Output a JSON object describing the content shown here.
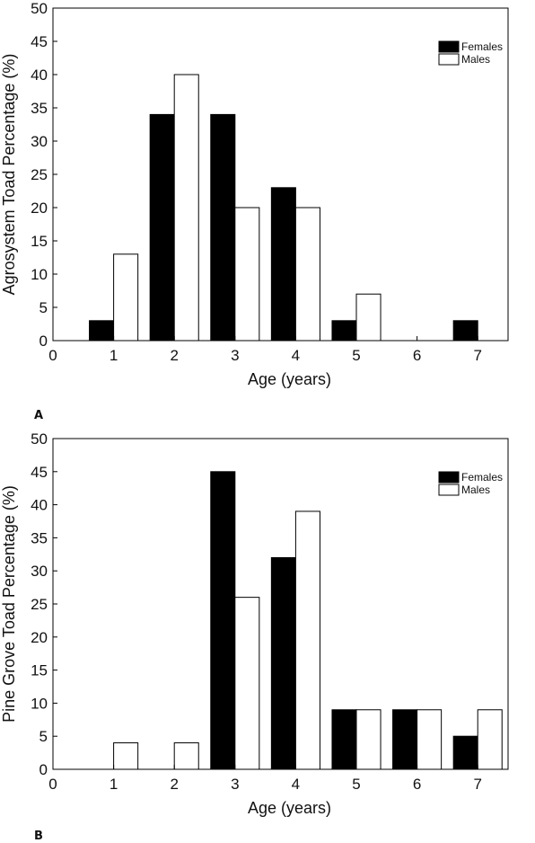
{
  "chart_data": [
    {
      "type": "bar",
      "panel_label": "A",
      "xlabel": "Age (years)",
      "ylabel": "Agrosystem Toad Percentage (%)",
      "xlim": [
        0,
        7.5
      ],
      "ylim": [
        0,
        50
      ],
      "x_ticks": [
        "0",
        "1",
        "2",
        "3",
        "4",
        "5",
        "6",
        "7"
      ],
      "y_ticks": [
        "0",
        "5",
        "10",
        "15",
        "20",
        "25",
        "30",
        "35",
        "40",
        "45",
        "50"
      ],
      "categories": [
        1,
        2,
        3,
        4,
        5,
        6,
        7
      ],
      "series": [
        {
          "name": "Females",
          "color": "#000000",
          "values": [
            3,
            34,
            34,
            23,
            3,
            0,
            3
          ]
        },
        {
          "name": "Males",
          "color": "#ffffff",
          "values": [
            13,
            40,
            20,
            20,
            7,
            0,
            0
          ]
        }
      ],
      "legend": "top-right",
      "grid": false
    },
    {
      "type": "bar",
      "panel_label": "B",
      "xlabel": "Age (years)",
      "ylabel": "Pine Grove Toad Percentage (%)",
      "xlim": [
        0,
        7.5
      ],
      "ylim": [
        0,
        50
      ],
      "x_ticks": [
        "0",
        "1",
        "2",
        "3",
        "4",
        "5",
        "6",
        "7"
      ],
      "y_ticks": [
        "0",
        "5",
        "10",
        "15",
        "20",
        "25",
        "30",
        "35",
        "40",
        "45",
        "50"
      ],
      "categories": [
        1,
        2,
        3,
        4,
        5,
        6,
        7
      ],
      "series": [
        {
          "name": "Females",
          "color": "#000000",
          "values": [
            0,
            0,
            45,
            32,
            9,
            9,
            5
          ]
        },
        {
          "name": "Males",
          "color": "#ffffff",
          "values": [
            4,
            4,
            26,
            39,
            9,
            9,
            9
          ]
        }
      ],
      "legend": "top-right",
      "grid": false
    }
  ]
}
